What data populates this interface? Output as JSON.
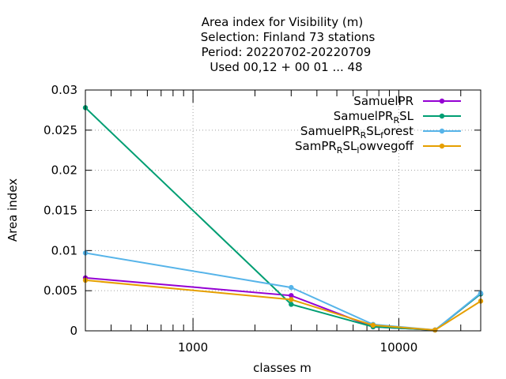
{
  "chart_data": {
    "type": "line",
    "title_lines": [
      "Area index  for Visibility (m)",
      "Selection: Finland      73 stations",
      "Period: 20220702-20220709",
      "Used  00,12  + 00 01 ... 48"
    ],
    "xlabel": "classes m",
    "ylabel": "Area index",
    "xscale": "log",
    "xlim": [
      300,
      25000
    ],
    "ylim": [
      0,
      0.03
    ],
    "yticks": [
      0,
      0.005,
      0.01,
      0.015,
      0.02,
      0.025,
      0.03
    ],
    "ytick_labels": [
      "0",
      "0.005",
      "0.01",
      "0.015",
      "0.02",
      "0.025",
      "0.03"
    ],
    "xticks": [
      1000,
      10000
    ],
    "xtick_labels": [
      "1000",
      "10000"
    ],
    "grid": true,
    "legend_position": "top-right",
    "x": [
      300,
      3000,
      7500,
      15000,
      25000
    ],
    "series": [
      {
        "name": "SamuelPR",
        "color": "#9400d3",
        "values": [
          0.0066,
          0.0044,
          0.0005,
          0.0001,
          0.0046
        ]
      },
      {
        "name": "SamuelPR_R SL",
        "name_parts": [
          "SamuelPR",
          "R",
          "SL"
        ],
        "color": "#009e73",
        "values": [
          0.0278,
          0.0033,
          0.0005,
          0.0001,
          0.0046
        ]
      },
      {
        "name": "SamuelPR_R SL_forest",
        "name_parts": [
          "SamuelPR",
          "R",
          "SL",
          "f",
          "orest"
        ],
        "color": "#56b4e9",
        "values": [
          0.0097,
          0.0054,
          0.0008,
          0.0001,
          0.0047
        ]
      },
      {
        "name": "SamPR_R SL_lowvegoff",
        "name_parts": [
          "SamPR",
          "R",
          "SL",
          "l",
          "owvegoff"
        ],
        "color": "#e69f00",
        "values": [
          0.0063,
          0.0039,
          0.0007,
          0.0001,
          0.0037
        ]
      }
    ]
  }
}
